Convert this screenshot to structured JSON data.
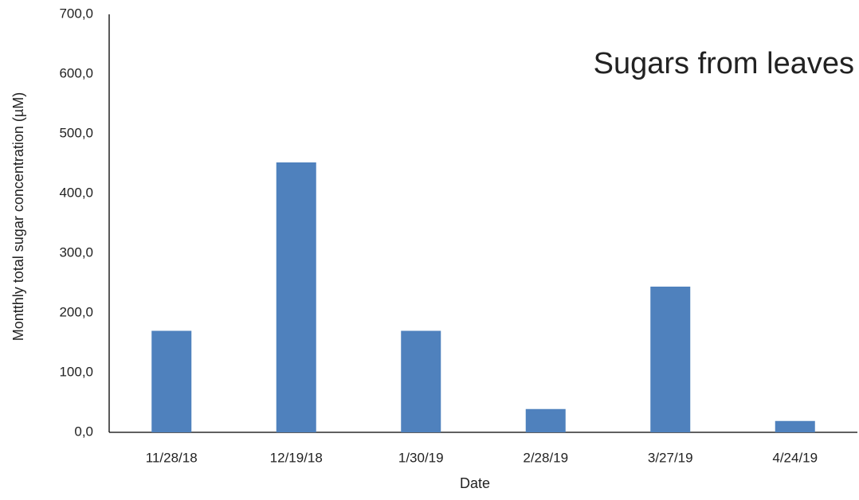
{
  "chart_data": {
    "type": "bar",
    "title": "Sugars from leaves",
    "xlabel": "Date",
    "ylabel": "Montthly total sugar concentration (µM)",
    "categories": [
      "11/28/18",
      "12/19/18",
      "1/30/19",
      "2/28/19",
      "3/27/19",
      "4/24/19"
    ],
    "values": [
      170,
      452,
      170,
      39,
      244,
      19
    ],
    "color": "#4f81bd",
    "ylim": [
      0,
      700
    ],
    "yticks": [
      {
        "value": 0,
        "label": "0,0"
      },
      {
        "value": 100,
        "label": "100,0"
      },
      {
        "value": 200,
        "label": "200,0"
      },
      {
        "value": 300,
        "label": "300,0"
      },
      {
        "value": 400,
        "label": "400,0"
      },
      {
        "value": 500,
        "label": "500,0"
      },
      {
        "value": 600,
        "label": "600,0"
      },
      {
        "value": 700,
        "label": "700,0"
      }
    ],
    "grid": false
  }
}
